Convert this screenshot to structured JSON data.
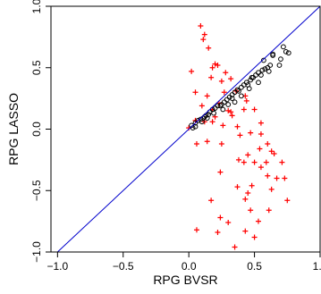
{
  "chart_data": {
    "type": "scatter",
    "xlabel": "RPG BVSR",
    "ylabel": "RPG LASSO",
    "xlim": [
      -1.05,
      1.0
    ],
    "ylim": [
      -1.0,
      1.0
    ],
    "x_ticks": [
      -1.0,
      -0.5,
      0.0,
      0.5,
      1.0
    ],
    "y_ticks": [
      -1.0,
      -0.5,
      0.0,
      0.5,
      1.0
    ],
    "x_tick_labels": [
      "−1.0",
      "−0.5",
      "0.0",
      "0.5",
      "1.0"
    ],
    "y_tick_labels": [
      "−1.0",
      "−0.5",
      "0.0",
      "0.5",
      "1.0"
    ],
    "reference_line": {
      "intercept": 0,
      "slope": 1,
      "color": "#0000cc"
    },
    "grid": false,
    "legend": "none",
    "series": [
      {
        "marker": "cross",
        "color": "#ff0000",
        "points": [
          [
            0.09,
            0.84
          ],
          [
            0.12,
            0.77
          ],
          [
            0.11,
            0.73
          ],
          [
            0.15,
            0.66
          ],
          [
            0.2,
            0.53
          ],
          [
            0.22,
            0.52
          ],
          [
            0.18,
            0.5
          ],
          [
            0.28,
            0.46
          ],
          [
            0.02,
            0.47
          ],
          [
            0.17,
            0.42
          ],
          [
            0.32,
            0.41
          ],
          [
            0.25,
            0.39
          ],
          [
            0.36,
            0.31
          ],
          [
            0.27,
            0.3
          ],
          [
            0.05,
            0.3
          ],
          [
            0.14,
            0.27
          ],
          [
            0.43,
            0.27
          ],
          [
            0.42,
            0.16
          ],
          [
            0.5,
            0.16
          ],
          [
            0.33,
            0.11
          ],
          [
            0.55,
            0.05
          ],
          [
            0.37,
            0.02
          ],
          [
            0.26,
            0.03
          ],
          [
            0.18,
            0.06
          ],
          [
            0.12,
            0.06
          ],
          [
            0.47,
            -0.03
          ],
          [
            0.55,
            -0.04
          ],
          [
            0.39,
            -0.05
          ],
          [
            0.14,
            -0.1
          ],
          [
            0.25,
            -0.12
          ],
          [
            0.06,
            -0.12
          ],
          [
            0.6,
            -0.12
          ],
          [
            0.54,
            -0.16
          ],
          [
            0.63,
            -0.18
          ],
          [
            0.65,
            -0.2
          ],
          [
            0.45,
            -0.21
          ],
          [
            0.38,
            -0.25
          ],
          [
            0.42,
            -0.27
          ],
          [
            0.5,
            -0.27
          ],
          [
            0.59,
            -0.27
          ],
          [
            0.71,
            -0.27
          ],
          [
            0.55,
            -0.31
          ],
          [
            0.24,
            -0.35
          ],
          [
            0.6,
            -0.38
          ],
          [
            0.67,
            -0.4
          ],
          [
            0.73,
            -0.4
          ],
          [
            0.48,
            -0.46
          ],
          [
            0.37,
            -0.47
          ],
          [
            0.63,
            -0.49
          ],
          [
            0.45,
            -0.52
          ],
          [
            0.43,
            -0.57
          ],
          [
            0.17,
            -0.58
          ],
          [
            0.75,
            -0.58
          ],
          [
            0.61,
            -0.66
          ],
          [
            0.47,
            -0.66
          ],
          [
            0.24,
            -0.72
          ],
          [
            0.53,
            -0.75
          ],
          [
            0.3,
            -0.76
          ],
          [
            0.06,
            -0.82
          ],
          [
            0.43,
            -0.83
          ],
          [
            0.22,
            -0.84
          ],
          [
            0.5,
            -0.88
          ],
          [
            0.35,
            -0.96
          ],
          [
            0.3,
            0.15
          ],
          [
            0.32,
            0.14
          ],
          [
            0.2,
            0.1
          ],
          [
            0.05,
            0.07
          ],
          [
            0.0,
            0.01
          ],
          [
            0.1,
            0.19
          ],
          [
            0.44,
            0.23
          ],
          [
            0.23,
            0.21
          ],
          [
            0.18,
            0.16
          ]
        ]
      },
      {
        "marker": "circle",
        "color": "#000000",
        "points": [
          [
            0.02,
            0.03
          ],
          [
            0.05,
            0.05
          ],
          [
            0.07,
            0.07
          ],
          [
            0.09,
            0.08
          ],
          [
            0.11,
            0.09
          ],
          [
            0.13,
            0.11
          ],
          [
            0.15,
            0.12
          ],
          [
            0.16,
            0.14
          ],
          [
            0.18,
            0.16
          ],
          [
            0.2,
            0.17
          ],
          [
            0.22,
            0.19
          ],
          [
            0.25,
            0.2
          ],
          [
            0.27,
            0.22
          ],
          [
            0.29,
            0.24
          ],
          [
            0.31,
            0.26
          ],
          [
            0.33,
            0.28
          ],
          [
            0.35,
            0.3
          ],
          [
            0.37,
            0.32
          ],
          [
            0.4,
            0.34
          ],
          [
            0.42,
            0.36
          ],
          [
            0.44,
            0.38
          ],
          [
            0.47,
            0.4
          ],
          [
            0.49,
            0.42
          ],
          [
            0.51,
            0.44
          ],
          [
            0.53,
            0.46
          ],
          [
            0.56,
            0.48
          ],
          [
            0.58,
            0.49
          ],
          [
            0.6,
            0.5
          ],
          [
            0.62,
            0.52
          ],
          [
            0.64,
            0.6
          ],
          [
            0.74,
            0.63
          ],
          [
            0.76,
            0.62
          ],
          [
            0.72,
            0.67
          ],
          [
            0.7,
            0.57
          ],
          [
            0.64,
            0.61
          ],
          [
            0.57,
            0.56
          ],
          [
            0.55,
            0.44
          ],
          [
            0.4,
            0.27
          ],
          [
            0.48,
            0.42
          ],
          [
            0.38,
            0.31
          ],
          [
            0.3,
            0.2
          ],
          [
            0.24,
            0.19
          ],
          [
            0.14,
            0.09
          ],
          [
            0.1,
            0.06
          ],
          [
            0.05,
            0.02
          ],
          [
            0.03,
            0.01
          ],
          [
            0.69,
            0.52
          ],
          [
            0.61,
            0.47
          ],
          [
            0.53,
            0.38
          ],
          [
            0.45,
            0.36
          ],
          [
            0.35,
            0.22
          ],
          [
            0.26,
            0.16
          ],
          [
            0.19,
            0.13
          ],
          [
            0.46,
            0.33
          ],
          [
            0.33,
            0.25
          ],
          [
            0.12,
            0.1
          ]
        ]
      }
    ]
  }
}
